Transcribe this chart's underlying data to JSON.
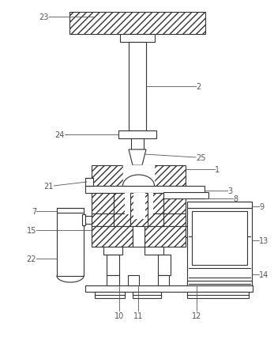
{
  "figure_width": 3.47,
  "figure_height": 4.31,
  "dpi": 100,
  "bg_color": "#ffffff",
  "line_color": "#333333",
  "label_color": "#555555",
  "label_fontsize": 7.0,
  "line_width": 0.8,
  "hatch": "////"
}
